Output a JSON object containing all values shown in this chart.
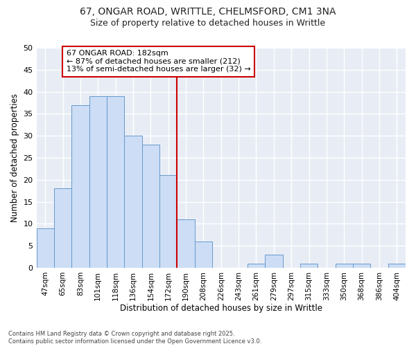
{
  "title1": "67, ONGAR ROAD, WRITTLE, CHELMSFORD, CM1 3NA",
  "title2": "Size of property relative to detached houses in Writtle",
  "xlabel": "Distribution of detached houses by size in Writtle",
  "ylabel": "Number of detached properties",
  "categories": [
    "47sqm",
    "65sqm",
    "83sqm",
    "101sqm",
    "118sqm",
    "136sqm",
    "154sqm",
    "172sqm",
    "190sqm",
    "208sqm",
    "226sqm",
    "243sqm",
    "261sqm",
    "279sqm",
    "297sqm",
    "315sqm",
    "333sqm",
    "350sqm",
    "368sqm",
    "386sqm",
    "404sqm"
  ],
  "values": [
    9,
    18,
    37,
    39,
    39,
    30,
    28,
    21,
    11,
    6,
    0,
    0,
    1,
    3,
    0,
    1,
    0,
    1,
    1,
    0,
    1
  ],
  "bar_color": "#ccddf5",
  "bar_edge_color": "#6699cc",
  "vline_x_index": 7.5,
  "vline_color": "#cc0000",
  "annotation_text": "67 ONGAR ROAD: 182sqm\n← 87% of detached houses are smaller (212)\n13% of semi-detached houses are larger (32) →",
  "annotation_box_color": "#ffffff",
  "annotation_box_edge_color": "#cc0000",
  "ylim": [
    0,
    50
  ],
  "yticks": [
    0,
    5,
    10,
    15,
    20,
    25,
    30,
    35,
    40,
    45,
    50
  ],
  "footer": "Contains HM Land Registry data © Crown copyright and database right 2025.\nContains public sector information licensed under the Open Government Licence v3.0.",
  "fig_bg_color": "#ffffff",
  "axes_bg_color": "#e8edf5",
  "grid_color": "#ffffff"
}
